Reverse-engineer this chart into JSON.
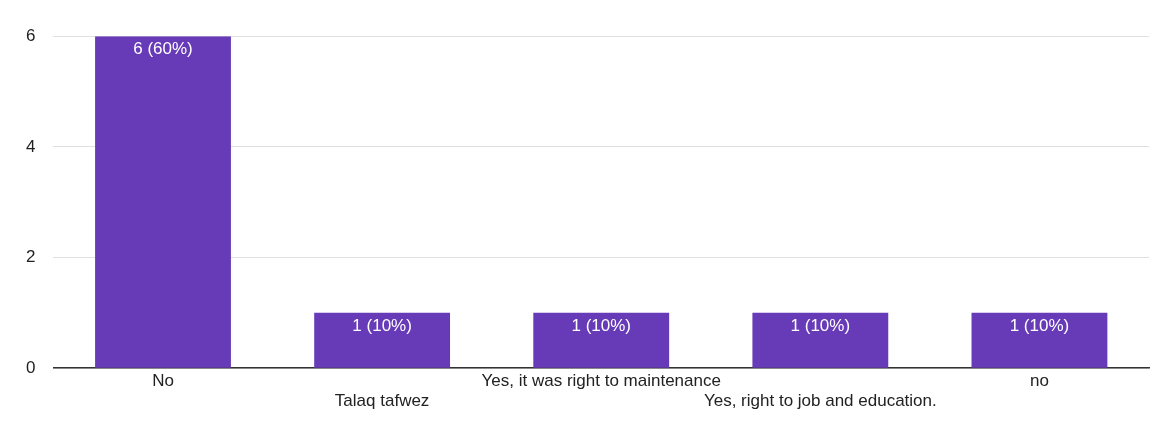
{
  "chart_data": {
    "type": "bar",
    "categories": [
      "No",
      "Talaq tafwez",
      "Yes, it was right to maintenance",
      "Yes, right to job and education.",
      "no"
    ],
    "values": [
      6,
      1,
      1,
      1,
      1
    ],
    "value_labels": [
      "6 (60%)",
      "1 (10%)",
      "1 (10%)",
      "1 (10%)",
      "1 (10%)"
    ],
    "color": "#673ab7",
    "ylim": [
      0,
      6
    ],
    "yticks": [
      0,
      2,
      4,
      6
    ],
    "grid": "y",
    "legend": false
  }
}
